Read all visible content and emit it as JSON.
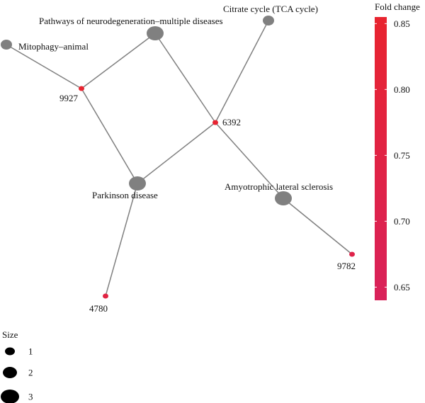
{
  "network": {
    "nodes": [
      {
        "id": "pathways-neurodegeneration",
        "label": "Pathways of neurodegeneration–multiple diseases",
        "kind": "pathway",
        "size": 3
      },
      {
        "id": "citrate-cycle",
        "label": "Citrate cycle (TCA cycle)",
        "kind": "pathway",
        "size": 2
      },
      {
        "id": "mitophagy-animal",
        "label": "Mitophagy–animal",
        "kind": "pathway",
        "size": 2
      },
      {
        "id": "parkinson-disease",
        "label": "Parkinson disease",
        "kind": "pathway",
        "size": 3
      },
      {
        "id": "amyotrophic-lateral-sclerosis",
        "label": "Amyotrophic lateral sclerosis",
        "kind": "pathway",
        "size": 3
      },
      {
        "id": "gene-9927",
        "label": "9927",
        "kind": "gene",
        "fold_change": 0.85
      },
      {
        "id": "gene-6392",
        "label": "6392",
        "kind": "gene",
        "fold_change": 0.84
      },
      {
        "id": "gene-9782",
        "label": "9782",
        "kind": "gene",
        "fold_change": 0.72
      },
      {
        "id": "gene-4780",
        "label": "4780",
        "kind": "gene",
        "fold_change": 0.76
      }
    ],
    "edges": [
      [
        "mitophagy-animal",
        "gene-9927"
      ],
      [
        "gene-9927",
        "pathways-neurodegeneration"
      ],
      [
        "gene-9927",
        "parkinson-disease"
      ],
      [
        "pathways-neurodegeneration",
        "gene-6392"
      ],
      [
        "citrate-cycle",
        "gene-6392"
      ],
      [
        "gene-6392",
        "parkinson-disease"
      ],
      [
        "gene-6392",
        "amyotrophic-lateral-sclerosis"
      ],
      [
        "amyotrophic-lateral-sclerosis",
        "gene-9782"
      ],
      [
        "parkinson-disease",
        "gene-4780"
      ]
    ]
  },
  "colorbar": {
    "title": "Fold change",
    "min": 0.64,
    "max": 0.855,
    "ticks": [
      "0.85",
      "0.80",
      "0.75",
      "0.70",
      "0.65"
    ],
    "tick_values": [
      0.85,
      0.8,
      0.75,
      0.7,
      0.65
    ],
    "color_high": "#e8242f",
    "color_low": "#d9225a"
  },
  "size_legend": {
    "title": "Size",
    "entries": [
      {
        "label": "1",
        "size": 1
      },
      {
        "label": "2",
        "size": 2
      },
      {
        "label": "3",
        "size": 3
      }
    ]
  },
  "colors": {
    "pathway_node": "#808080",
    "edge": "#808080"
  }
}
